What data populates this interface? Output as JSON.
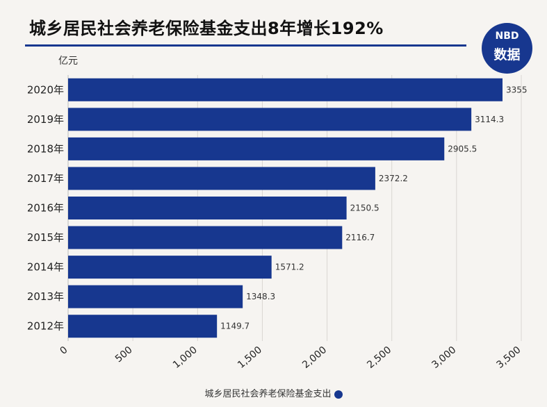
{
  "header": {
    "title": "城乡居民社会养老保险基金支出8年增长192%",
    "badge_top": "NBD",
    "badge_bottom": "数据"
  },
  "colors": {
    "bar": "#17378f",
    "grid": "#d9d6d2"
  },
  "chart_data": {
    "type": "bar",
    "orientation": "horizontal",
    "title": "城乡居民社会养老保险基金支出8年增长192%",
    "ylabel": "亿元",
    "categories": [
      "2020年",
      "2019年",
      "2018年",
      "2017年",
      "2016年",
      "2015年",
      "2014年",
      "2013年",
      "2012年"
    ],
    "values": [
      3355,
      3114.3,
      2905.5,
      2372.2,
      2150.5,
      2116.7,
      1571.2,
      1348.3,
      1149.7
    ],
    "value_labels": [
      "3355",
      "3114.3",
      "2905.5",
      "2372.2",
      "2150.5",
      "2116.7",
      "1571.2",
      "1348.3",
      "1149.7"
    ],
    "xlim": [
      0,
      3500
    ],
    "xticks": [
      0,
      500,
      1000,
      1500,
      2000,
      2500,
      3000,
      3500
    ],
    "xtick_labels": [
      "0",
      "500",
      "1,000",
      "1,500",
      "2,000",
      "2,500",
      "3,000",
      "3,500"
    ],
    "grid": "vertical",
    "legend": {
      "placement": "bottom",
      "entries": [
        "城乡居民社会养老保险基金支出"
      ]
    }
  }
}
